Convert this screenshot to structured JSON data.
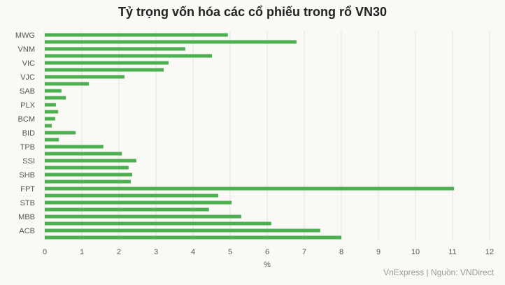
{
  "chart_data": {
    "type": "hbar",
    "title": "Tỷ trọng vốn hóa các cổ phiếu trong rổ VN30",
    "x_label": "%",
    "source": "VnExpress | Nguồn: VNDirect",
    "color": "#4caf50",
    "grid": true,
    "categories": [
      "MWG",
      null,
      "VNM",
      null,
      "VIC",
      null,
      "VJC",
      null,
      "SAB",
      null,
      "PLX",
      null,
      "BCM",
      null,
      "BID",
      null,
      "TPB",
      null,
      "SSI",
      null,
      "SHB",
      null,
      "FPT",
      null,
      "STB",
      null,
      "MBB",
      null,
      "ACB",
      null
    ],
    "values": [
      4.94,
      6.79,
      3.79,
      4.51,
      3.34,
      3.21,
      2.15,
      1.19,
      0.45,
      0.57,
      0.3,
      0.36,
      0.28,
      0.19,
      0.83,
      0.38,
      1.58,
      2.08,
      2.47,
      2.26,
      2.36,
      2.32,
      11.04,
      4.68,
      5.04,
      4.43,
      5.3,
      6.11,
      7.43,
      8.0
    ],
    "xlim": [
      0,
      12
    ],
    "xticks": [
      0,
      1,
      2,
      3,
      4,
      5,
      6,
      7,
      8,
      9,
      10,
      11,
      12
    ]
  }
}
